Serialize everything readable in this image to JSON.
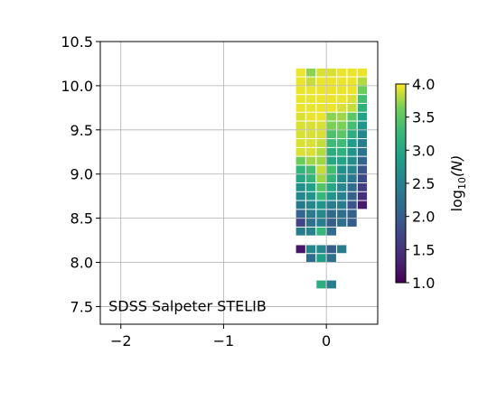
{
  "chart_data": {
    "type": "heatmap",
    "title": "",
    "xlabel": "",
    "ylabel": "",
    "xlim": [
      -2.2,
      0.5
    ],
    "ylim": [
      7.3,
      10.5
    ],
    "xticks": [
      -2,
      -1,
      0
    ],
    "xtick_labels": [
      "−2",
      "−1",
      "0"
    ],
    "yticks": [
      7.5,
      8.0,
      8.5,
      9.0,
      9.5,
      10.0,
      10.5
    ],
    "ytick_labels": [
      "7.5",
      "8.0",
      "8.5",
      "9.0",
      "9.5",
      "10.0",
      "10.5"
    ],
    "grid": true,
    "annotation": "SDSS Salpeter STELIB",
    "annotation_placement": "bottom-left",
    "colorbar": {
      "label_prefix": "log",
      "label_sub": "10",
      "label_suffix": "(N)",
      "range": [
        1.0,
        4.0
      ],
      "ticks": [
        1.0,
        1.5,
        2.0,
        2.5,
        3.0,
        3.5,
        4.0
      ],
      "tick_labels": [
        "1.0",
        "1.5",
        "2.0",
        "2.5",
        "3.0",
        "3.5",
        "4.0"
      ],
      "colormap": "viridis",
      "placement": "right"
    },
    "cell_width": 0.09,
    "cell_height": 0.09,
    "x_columns": [
      -0.25,
      -0.15,
      -0.05,
      0.05,
      0.15,
      0.25,
      0.35
    ],
    "columns": [
      {
        "x": -0.25,
        "cells": [
          [
            10.15,
            3.95
          ],
          [
            10.05,
            3.95
          ],
          [
            9.95,
            3.95
          ],
          [
            9.85,
            3.95
          ],
          [
            9.75,
            3.95
          ],
          [
            9.65,
            3.9
          ],
          [
            9.55,
            3.9
          ],
          [
            9.45,
            3.9
          ],
          [
            9.35,
            3.9
          ],
          [
            9.25,
            3.9
          ],
          [
            9.15,
            3.6
          ],
          [
            9.05,
            3.2
          ],
          [
            8.95,
            3.0
          ],
          [
            8.85,
            2.7
          ],
          [
            8.75,
            2.55
          ],
          [
            8.65,
            2.35
          ],
          [
            8.55,
            2.1
          ],
          [
            8.45,
            1.7
          ],
          [
            8.35,
            2.4
          ],
          [
            8.15,
            1.2
          ]
        ]
      },
      {
        "x": -0.15,
        "cells": [
          [
            10.15,
            3.7
          ],
          [
            10.05,
            3.85
          ],
          [
            9.95,
            3.95
          ],
          [
            9.85,
            3.95
          ],
          [
            9.75,
            3.95
          ],
          [
            9.65,
            3.95
          ],
          [
            9.55,
            3.9
          ],
          [
            9.45,
            3.9
          ],
          [
            9.35,
            3.9
          ],
          [
            9.25,
            3.9
          ],
          [
            9.15,
            3.75
          ],
          [
            9.05,
            3.35
          ],
          [
            8.95,
            3.2
          ],
          [
            8.85,
            2.9
          ],
          [
            8.75,
            2.75
          ],
          [
            8.65,
            2.55
          ],
          [
            8.55,
            2.4
          ],
          [
            8.45,
            2.25
          ],
          [
            8.35,
            2.5
          ],
          [
            8.15,
            2.55
          ],
          [
            8.05,
            2.2
          ]
        ]
      },
      {
        "x": -0.05,
        "cells": [
          [
            10.15,
            3.9
          ],
          [
            10.05,
            3.95
          ],
          [
            9.95,
            3.95
          ],
          [
            9.85,
            3.95
          ],
          [
            9.75,
            3.95
          ],
          [
            9.65,
            3.95
          ],
          [
            9.55,
            3.9
          ],
          [
            9.45,
            3.9
          ],
          [
            9.35,
            3.85
          ],
          [
            9.25,
            3.8
          ],
          [
            9.15,
            3.75
          ],
          [
            9.05,
            3.85
          ],
          [
            8.95,
            3.75
          ],
          [
            8.85,
            3.45
          ],
          [
            8.75,
            3.25
          ],
          [
            8.65,
            2.75
          ],
          [
            8.55,
            2.6
          ],
          [
            8.45,
            2.45
          ],
          [
            8.35,
            3.25
          ],
          [
            8.15,
            2.6
          ],
          [
            8.05,
            2.9
          ],
          [
            7.75,
            3.1
          ]
        ]
      },
      {
        "x": 0.05,
        "cells": [
          [
            10.15,
            3.9
          ],
          [
            10.05,
            3.95
          ],
          [
            9.95,
            3.95
          ],
          [
            9.85,
            3.95
          ],
          [
            9.75,
            3.95
          ],
          [
            9.65,
            3.7
          ],
          [
            9.55,
            3.65
          ],
          [
            9.45,
            3.4
          ],
          [
            9.35,
            3.3
          ],
          [
            9.25,
            3.1
          ],
          [
            9.15,
            3.0
          ],
          [
            9.05,
            3.35
          ],
          [
            8.95,
            3.2
          ],
          [
            8.85,
            3.0
          ],
          [
            8.75,
            2.75
          ],
          [
            8.65,
            2.4
          ],
          [
            8.55,
            2.15
          ],
          [
            8.45,
            2.0
          ],
          [
            8.35,
            2.15
          ],
          [
            8.15,
            2.0
          ],
          [
            8.05,
            2.25
          ],
          [
            7.75,
            2.4
          ]
        ]
      },
      {
        "x": 0.15,
        "cells": [
          [
            10.15,
            3.95
          ],
          [
            10.05,
            3.95
          ],
          [
            9.95,
            3.95
          ],
          [
            9.85,
            3.95
          ],
          [
            9.75,
            3.9
          ],
          [
            9.65,
            3.75
          ],
          [
            9.55,
            3.65
          ],
          [
            9.45,
            3.5
          ],
          [
            9.35,
            3.3
          ],
          [
            9.25,
            3.15
          ],
          [
            9.15,
            2.95
          ],
          [
            9.05,
            2.7
          ],
          [
            8.95,
            2.65
          ],
          [
            8.85,
            2.55
          ],
          [
            8.75,
            2.5
          ],
          [
            8.65,
            2.4
          ],
          [
            8.55,
            2.2
          ],
          [
            8.45,
            2.25
          ],
          [
            8.15,
            2.4
          ]
        ]
      },
      {
        "x": 0.25,
        "cells": [
          [
            10.15,
            3.95
          ],
          [
            10.05,
            3.95
          ],
          [
            9.95,
            3.95
          ],
          [
            9.85,
            3.9
          ],
          [
            9.75,
            3.85
          ],
          [
            9.65,
            3.5
          ],
          [
            9.55,
            3.35
          ],
          [
            9.45,
            3.1
          ],
          [
            9.35,
            2.85
          ],
          [
            9.25,
            2.75
          ],
          [
            9.15,
            2.65
          ],
          [
            9.05,
            2.55
          ],
          [
            8.95,
            2.35
          ],
          [
            8.85,
            2.2
          ],
          [
            8.75,
            2.05
          ],
          [
            8.65,
            1.9
          ],
          [
            8.55,
            2.05
          ],
          [
            8.45,
            2.0
          ]
        ]
      },
      {
        "x": 0.35,
        "cells": [
          [
            10.15,
            3.95
          ],
          [
            10.05,
            3.8
          ],
          [
            9.95,
            3.6
          ],
          [
            9.85,
            3.35
          ],
          [
            9.75,
            3.15
          ],
          [
            9.65,
            2.95
          ],
          [
            9.55,
            2.75
          ],
          [
            9.45,
            2.6
          ],
          [
            9.35,
            2.4
          ],
          [
            9.25,
            2.3
          ],
          [
            9.15,
            2.1
          ],
          [
            9.05,
            1.9
          ],
          [
            8.95,
            1.75
          ],
          [
            8.85,
            1.6
          ],
          [
            8.75,
            1.45
          ],
          [
            8.65,
            1.25
          ]
        ]
      }
    ]
  }
}
